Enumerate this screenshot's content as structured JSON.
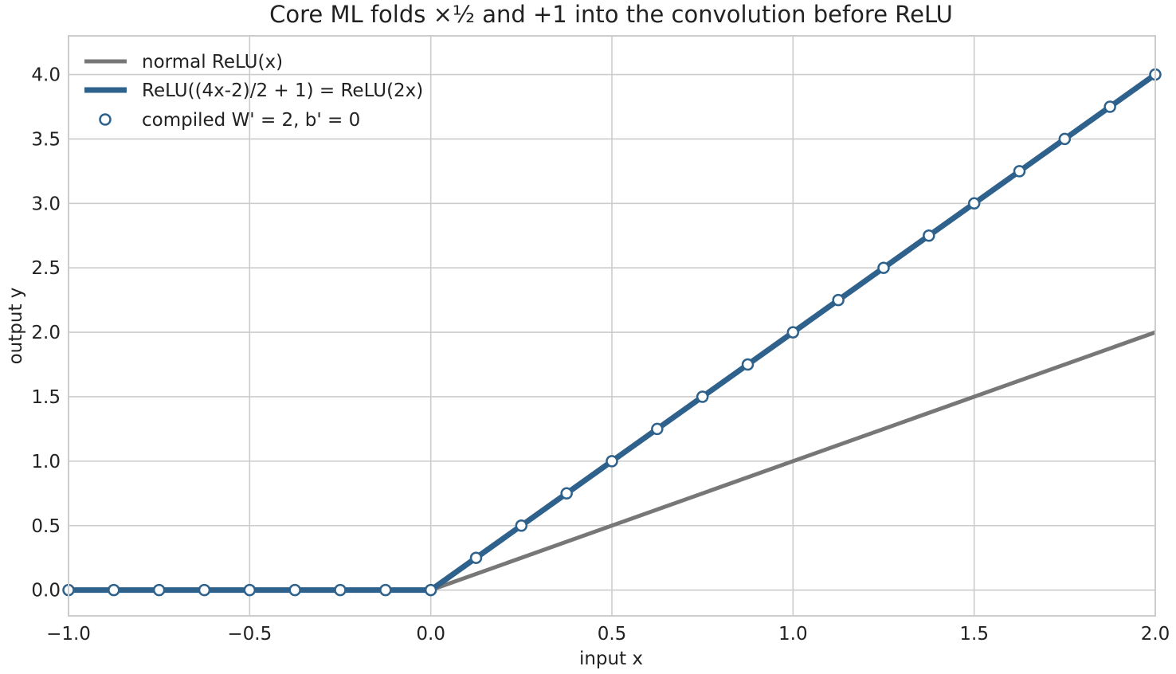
{
  "chart_data": {
    "type": "line",
    "title": "Core ML folds ×½ and +1 into the convolution before ReLU",
    "xlabel": "input x",
    "ylabel": "output y",
    "xlim": [
      -1.0,
      2.0
    ],
    "ylim": [
      -0.2,
      4.3
    ],
    "xticks": [
      -1.0,
      -0.5,
      0.0,
      0.5,
      1.0,
      1.5,
      2.0
    ],
    "xtick_labels": [
      "−1.0",
      "−0.5",
      "0.0",
      "0.5",
      "1.0",
      "1.5",
      "2.0"
    ],
    "yticks": [
      0.0,
      0.5,
      1.0,
      1.5,
      2.0,
      2.5,
      3.0,
      3.5,
      4.0
    ],
    "ytick_labels": [
      "0.0",
      "0.5",
      "1.0",
      "1.5",
      "2.0",
      "2.5",
      "3.0",
      "3.5",
      "4.0"
    ],
    "grid": true,
    "legend_position": "top-left",
    "series": [
      {
        "name": "normal ReLU(x)",
        "kind": "line",
        "color": "#777777",
        "x": [
          -1.0,
          0.0,
          2.0
        ],
        "y": [
          0.0,
          0.0,
          2.0
        ]
      },
      {
        "name": "ReLU((4x-2)/2 + 1) = ReLU(2x)",
        "kind": "line",
        "color": "#2e628c",
        "x": [
          -1.0,
          0.0,
          2.0
        ],
        "y": [
          0.0,
          0.0,
          4.0
        ]
      },
      {
        "name": "compiled W' = 2, b' = 0",
        "kind": "scatter",
        "color": "#2e628c",
        "fill": "#ffffff",
        "x": [
          -1.0,
          -0.875,
          -0.75,
          -0.625,
          -0.5,
          -0.375,
          -0.25,
          -0.125,
          0.0,
          0.125,
          0.25,
          0.375,
          0.5,
          0.625,
          0.75,
          0.875,
          1.0,
          1.125,
          1.25,
          1.375,
          1.5,
          1.625,
          1.75,
          1.875,
          2.0
        ],
        "y": [
          0.0,
          0.0,
          0.0,
          0.0,
          0.0,
          0.0,
          0.0,
          0.0,
          0.0,
          0.25,
          0.5,
          0.75,
          1.0,
          1.25,
          1.5,
          1.75,
          2.0,
          2.25,
          2.5,
          2.75,
          3.0,
          3.25,
          3.5,
          3.75,
          4.0
        ]
      }
    ]
  }
}
